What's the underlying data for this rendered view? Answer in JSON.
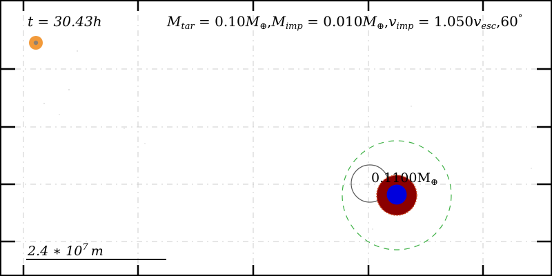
{
  "time_label": {
    "var": "t",
    "eq": " = ",
    "value": "30.43",
    "unit": "h"
  },
  "params_label": {
    "mtar_sym": "M",
    "mtar_sub": "tar",
    "mtar_eq": " = 0.10",
    "mtar_unit": "M",
    "earth_sym": "⊕",
    "comma1": ",",
    "mimp_sym": "M",
    "mimp_sub": "imp",
    "mimp_eq": " = 0.010",
    "mimp_unit": "M",
    "earth_sym2": "⊕",
    "comma2": ",",
    "vimp_sym": "v",
    "vimp_sub": "imp",
    "vimp_eq": " = 1.050",
    "vesc_sym": "v",
    "vesc_sub": "esc",
    "comma3": ",",
    "angle": "60",
    "degree": "°"
  },
  "body_mass_label": {
    "value": "0.1100M",
    "earth_sym": "⊕"
  },
  "scale_bar": {
    "mantissa": "2.4",
    "times": " ∗ ",
    "base": "10",
    "exponent": "7",
    "unit": "m"
  },
  "colors": {
    "frame": "#000000",
    "grid": "#c8c8c8",
    "small_body_outer": "#f0a040",
    "small_body_inner": "#8a7a6a",
    "mantle": "#8b0000",
    "core": "#0000dd",
    "hill_sphere": "#3cb043",
    "orbit_ring": "#555555"
  }
}
